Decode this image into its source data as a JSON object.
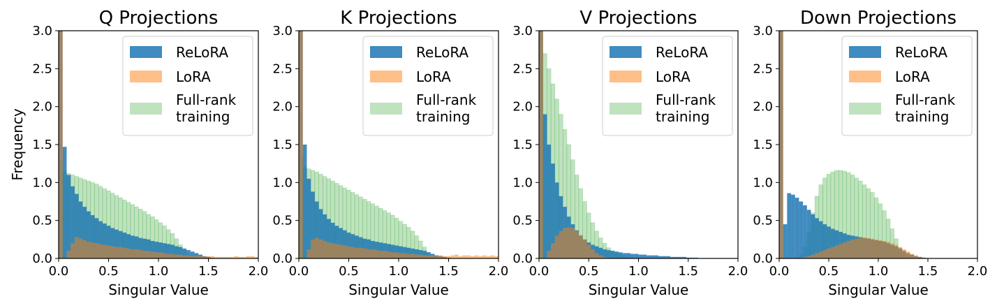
{
  "colors": {
    "relora": "#1f77b4",
    "lora": "#ff7f0e",
    "full": "#2ca02c"
  },
  "chart_data": [
    {
      "type": "bar",
      "title": "Q Projections",
      "xlabel": "Singular Value",
      "ylabel": "Frequency",
      "xlim": [
        0,
        2.0
      ],
      "ylim": [
        0,
        3.0
      ],
      "xticks": [
        "0.0",
        "0.5",
        "1.0",
        "1.5",
        "2.0"
      ],
      "yticks": [
        "0.0",
        "0.5",
        "1.0",
        "1.5",
        "2.0",
        "2.5",
        "3.0"
      ],
      "bin_width": 0.04,
      "legend": {
        "position": "top-right",
        "entries": [
          "ReLoRA",
          "LoRA",
          "Full-rank\ntraining"
        ]
      },
      "series": [
        {
          "name": "ReLoRA",
          "values": [
            3.0,
            1.47,
            1.1,
            0.95,
            0.85,
            0.75,
            0.68,
            0.62,
            0.57,
            0.53,
            0.49,
            0.46,
            0.43,
            0.4,
            0.38,
            0.36,
            0.34,
            0.32,
            0.3,
            0.29,
            0.27,
            0.26,
            0.25,
            0.23,
            0.22,
            0.21,
            0.2,
            0.19,
            0.18,
            0.16,
            0.15,
            0.13,
            0.11,
            0.09,
            0.07,
            0.05,
            0.03,
            0.02,
            0.01,
            0.0,
            0.0,
            0.0,
            0.0,
            0.0,
            0.0,
            0.0,
            0.0,
            0.0,
            0.0,
            0.0
          ]
        },
        {
          "name": "LoRA",
          "values": [
            3.0,
            0.0,
            0.1,
            0.2,
            0.28,
            0.26,
            0.24,
            0.22,
            0.21,
            0.2,
            0.19,
            0.18,
            0.17,
            0.16,
            0.15,
            0.15,
            0.14,
            0.13,
            0.12,
            0.12,
            0.11,
            0.1,
            0.1,
            0.09,
            0.08,
            0.08,
            0.07,
            0.06,
            0.06,
            0.05,
            0.05,
            0.04,
            0.04,
            0.03,
            0.03,
            0.03,
            0.03,
            0.03,
            0.03,
            0.02,
            0.02,
            0.02,
            0.02,
            0.02,
            0.03,
            0.02,
            0.02,
            0.03,
            0.03,
            0.02
          ]
        },
        {
          "name": "Full-rank\ntraining",
          "values": [
            1.3,
            1.15,
            1.12,
            1.1,
            1.08,
            1.06,
            1.04,
            1.02,
            1.0,
            0.98,
            0.95,
            0.92,
            0.89,
            0.86,
            0.83,
            0.8,
            0.77,
            0.74,
            0.71,
            0.68,
            0.65,
            0.62,
            0.58,
            0.55,
            0.51,
            0.47,
            0.43,
            0.38,
            0.33,
            0.26,
            0.18,
            0.1,
            0.05,
            0.02,
            0.01,
            0.0,
            0.0,
            0.0,
            0.0,
            0.0,
            0.0,
            0.0,
            0.0,
            0.0,
            0.0,
            0.0,
            0.0,
            0.0,
            0.0,
            0.0
          ]
        }
      ]
    },
    {
      "type": "bar",
      "title": "K Projections",
      "xlabel": "Singular Value",
      "ylabel": "",
      "xlim": [
        0,
        2.0
      ],
      "ylim": [
        0,
        3.0
      ],
      "xticks": [
        "0.0",
        "0.5",
        "1.0",
        "1.5",
        "2.0"
      ],
      "yticks": [
        "0.0",
        "0.5",
        "1.0",
        "1.5",
        "2.0",
        "2.5",
        "3.0"
      ],
      "bin_width": 0.04,
      "legend": {
        "position": "top-right",
        "entries": [
          "ReLoRA",
          "LoRA",
          "Full-rank\ntraining"
        ]
      },
      "series": [
        {
          "name": "ReLoRA",
          "values": [
            3.0,
            1.5,
            1.05,
            0.88,
            0.75,
            0.65,
            0.58,
            0.52,
            0.47,
            0.43,
            0.4,
            0.37,
            0.34,
            0.32,
            0.3,
            0.28,
            0.26,
            0.25,
            0.23,
            0.22,
            0.21,
            0.2,
            0.19,
            0.18,
            0.17,
            0.16,
            0.15,
            0.14,
            0.13,
            0.12,
            0.11,
            0.1,
            0.08,
            0.06,
            0.04,
            0.03,
            0.02,
            0.01,
            0.0,
            0.0,
            0.0,
            0.0,
            0.0,
            0.0,
            0.0,
            0.0,
            0.0,
            0.0,
            0.0,
            0.0
          ]
        },
        {
          "name": "LoRA",
          "values": [
            3.0,
            0.0,
            0.12,
            0.25,
            0.27,
            0.25,
            0.23,
            0.21,
            0.2,
            0.19,
            0.18,
            0.17,
            0.16,
            0.15,
            0.14,
            0.14,
            0.13,
            0.12,
            0.12,
            0.11,
            0.1,
            0.1,
            0.09,
            0.08,
            0.08,
            0.07,
            0.07,
            0.06,
            0.06,
            0.05,
            0.05,
            0.04,
            0.04,
            0.04,
            0.03,
            0.04,
            0.03,
            0.03,
            0.04,
            0.05,
            0.03,
            0.04,
            0.04,
            0.03,
            0.04,
            0.03,
            0.04,
            0.03,
            0.04,
            0.03
          ]
        },
        {
          "name": "Full-rank\ntraining",
          "values": [
            1.35,
            1.2,
            1.18,
            1.16,
            1.14,
            1.11,
            1.08,
            1.05,
            1.02,
            0.99,
            0.96,
            0.93,
            0.9,
            0.87,
            0.84,
            0.81,
            0.78,
            0.75,
            0.72,
            0.69,
            0.66,
            0.63,
            0.6,
            0.57,
            0.53,
            0.49,
            0.45,
            0.41,
            0.36,
            0.3,
            0.23,
            0.15,
            0.08,
            0.04,
            0.02,
            0.0,
            0.0,
            0.0,
            0.0,
            0.0,
            0.0,
            0.0,
            0.0,
            0.0,
            0.0,
            0.0,
            0.0,
            0.0,
            0.0,
            0.0
          ]
        }
      ]
    },
    {
      "type": "bar",
      "title": "V Projections",
      "xlabel": "Singular Value",
      "ylabel": "",
      "xlim": [
        0,
        2.0
      ],
      "ylim": [
        0,
        3.0
      ],
      "xticks": [
        "0.0",
        "0.5",
        "1.0",
        "1.5",
        "2.0"
      ],
      "yticks": [
        "0.0",
        "0.5",
        "1.0",
        "1.5",
        "2.0",
        "2.5",
        "3.0"
      ],
      "bin_width": 0.04,
      "legend": {
        "position": "top-right",
        "entries": [
          "ReLoRA",
          "LoRA",
          "Full-rank\ntraining"
        ]
      },
      "series": [
        {
          "name": "ReLoRA",
          "values": [
            3.0,
            1.9,
            1.5,
            1.25,
            1.0,
            0.82,
            0.68,
            0.55,
            0.45,
            0.37,
            0.3,
            0.25,
            0.21,
            0.18,
            0.16,
            0.14,
            0.12,
            0.11,
            0.1,
            0.09,
            0.08,
            0.07,
            0.07,
            0.06,
            0.06,
            0.05,
            0.05,
            0.04,
            0.04,
            0.04,
            0.03,
            0.03,
            0.03,
            0.02,
            0.02,
            0.02,
            0.02,
            0.01,
            0.01,
            0.01,
            0.0,
            0.0,
            0.0,
            0.0,
            0.0,
            0.0,
            0.0,
            0.0,
            0.0,
            0.0
          ]
        },
        {
          "name": "LoRA",
          "values": [
            3.0,
            0.0,
            0.1,
            0.2,
            0.3,
            0.36,
            0.4,
            0.41,
            0.4,
            0.36,
            0.31,
            0.25,
            0.18,
            0.12,
            0.07,
            0.04,
            0.02,
            0.01,
            0.0,
            0.0,
            0.0,
            0.0,
            0.0,
            0.0,
            0.0,
            0.0,
            0.0,
            0.0,
            0.0,
            0.0,
            0.0,
            0.0,
            0.0,
            0.0,
            0.0,
            0.0,
            0.0,
            0.0,
            0.0,
            0.0,
            0.0,
            0.0,
            0.0,
            0.0,
            0.0,
            0.0,
            0.0,
            0.0,
            0.0,
            0.0
          ]
        },
        {
          "name": "Full-rank\ntraining",
          "values": [
            3.0,
            2.7,
            2.5,
            2.3,
            2.1,
            1.9,
            1.7,
            1.5,
            1.3,
            1.1,
            0.92,
            0.75,
            0.6,
            0.47,
            0.36,
            0.27,
            0.2,
            0.14,
            0.1,
            0.07,
            0.05,
            0.03,
            0.02,
            0.01,
            0.0,
            0.0,
            0.0,
            0.0,
            0.0,
            0.0,
            0.0,
            0.0,
            0.0,
            0.0,
            0.0,
            0.0,
            0.0,
            0.0,
            0.0,
            0.0,
            0.0,
            0.0,
            0.0,
            0.0,
            0.0,
            0.0,
            0.0,
            0.0,
            0.0,
            0.0
          ]
        }
      ]
    },
    {
      "type": "bar",
      "title": "Down Projections",
      "xlabel": "Singular Value",
      "ylabel": "",
      "xlim": [
        0,
        2.0
      ],
      "ylim": [
        0,
        3.0
      ],
      "xticks": [
        "0.0",
        "0.5",
        "1.0",
        "1.5",
        "2.0"
      ],
      "yticks": [
        "0.0",
        "0.5",
        "1.0",
        "1.5",
        "2.0",
        "2.5",
        "3.0"
      ],
      "bin_width": 0.04,
      "legend": {
        "position": "top-right",
        "entries": [
          "ReLoRA",
          "LoRA",
          "Full-rank\ntraining"
        ]
      },
      "series": [
        {
          "name": "ReLoRA",
          "values": [
            3.0,
            0.45,
            0.86,
            0.84,
            0.8,
            0.75,
            0.7,
            0.64,
            0.58,
            0.53,
            0.49,
            0.45,
            0.42,
            0.39,
            0.37,
            0.35,
            0.33,
            0.31,
            0.3,
            0.29,
            0.28,
            0.27,
            0.26,
            0.25,
            0.24,
            0.23,
            0.22,
            0.2,
            0.18,
            0.16,
            0.13,
            0.1,
            0.07,
            0.05,
            0.03,
            0.02,
            0.01,
            0.0,
            0.0,
            0.0,
            0.0,
            0.0,
            0.0,
            0.0,
            0.0,
            0.0,
            0.0,
            0.0,
            0.0,
            0.0
          ]
        },
        {
          "name": "LoRA",
          "values": [
            3.0,
            0.0,
            0.0,
            0.0,
            0.0,
            0.01,
            0.02,
            0.03,
            0.05,
            0.07,
            0.09,
            0.11,
            0.13,
            0.15,
            0.17,
            0.19,
            0.21,
            0.23,
            0.25,
            0.26,
            0.27,
            0.27,
            0.27,
            0.26,
            0.25,
            0.24,
            0.23,
            0.22,
            0.2,
            0.18,
            0.15,
            0.12,
            0.09,
            0.06,
            0.04,
            0.02,
            0.01,
            0.0,
            0.0,
            0.0,
            0.0,
            0.0,
            0.0,
            0.0,
            0.0,
            0.0,
            0.0,
            0.0,
            0.0,
            0.0
          ]
        },
        {
          "name": "Full-rank\ntraining",
          "values": [
            0.0,
            0.0,
            0.0,
            0.0,
            0.01,
            0.05,
            0.15,
            0.35,
            0.6,
            0.82,
            0.97,
            1.06,
            1.11,
            1.14,
            1.16,
            1.16,
            1.15,
            1.13,
            1.1,
            1.06,
            1.02,
            0.97,
            0.92,
            0.87,
            0.8,
            0.72,
            0.63,
            0.52,
            0.39,
            0.26,
            0.14,
            0.06,
            0.02,
            0.01,
            0.0,
            0.0,
            0.0,
            0.0,
            0.0,
            0.0,
            0.0,
            0.0,
            0.0,
            0.0,
            0.0,
            0.0,
            0.0,
            0.0,
            0.0,
            0.0
          ]
        }
      ]
    }
  ]
}
